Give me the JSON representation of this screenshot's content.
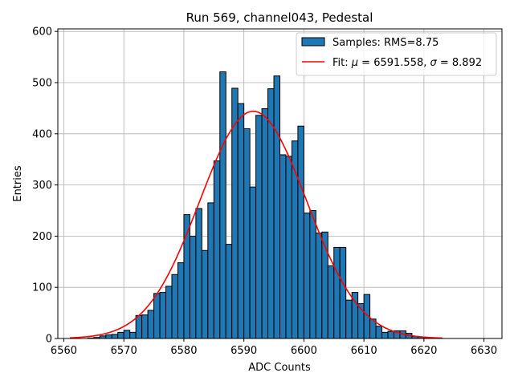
{
  "chart_data": {
    "type": "bar",
    "title": "Run 569, channel043, Pedestal",
    "xlabel": "ADC Counts",
    "ylabel": "Entries",
    "xlim": [
      6559,
      6633
    ],
    "ylim": [
      0,
      605
    ],
    "xticks": [
      6560,
      6570,
      6580,
      6590,
      6600,
      6610,
      6620,
      6630
    ],
    "yticks": [
      0,
      100,
      200,
      300,
      400,
      500,
      600
    ],
    "grid": true,
    "legend_position": "top-right",
    "bar_color": "#1f77b4",
    "fit_color": "#ff0000",
    "bins_start": 6564,
    "bin_width": 1,
    "counts": [
      1,
      2,
      5,
      7,
      8,
      12,
      16,
      12,
      45,
      46,
      55,
      88,
      90,
      102,
      125,
      148,
      242,
      200,
      254,
      172,
      265,
      347,
      521,
      184,
      489,
      459,
      410,
      296,
      436,
      449,
      488,
      513,
      359,
      356,
      386,
      415,
      245,
      250,
      206,
      208,
      142,
      178,
      178,
      75,
      90,
      68,
      86,
      38,
      24,
      12,
      14,
      15,
      15,
      10,
      4,
      3,
      1,
      1,
      1
    ],
    "fit": {
      "mu": 6591.558,
      "sigma": 8.892,
      "amplitude": 444,
      "x_start": 6561,
      "x_end": 6623
    },
    "legend": [
      {
        "kind": "bar",
        "label": "Samples: RMS=8.75"
      },
      {
        "kind": "line",
        "label_prefix": "Fit: ",
        "mu_symbol": "μ",
        "mu_value": " = 6591.558, ",
        "sigma_symbol": "σ",
        "sigma_value": " = 8.892"
      }
    ]
  }
}
